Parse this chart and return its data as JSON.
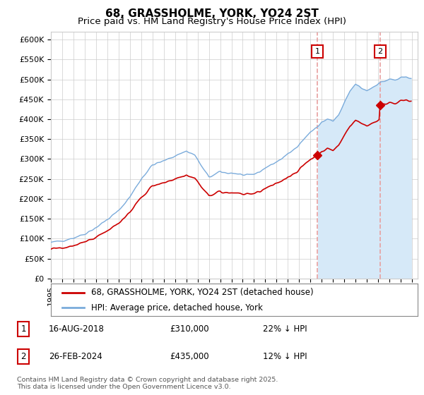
{
  "title": "68, GRASSHOLME, YORK, YO24 2ST",
  "subtitle": "Price paid vs. HM Land Registry's House Price Index (HPI)",
  "ylabel_ticks": [
    "£0",
    "£50K",
    "£100K",
    "£150K",
    "£200K",
    "£250K",
    "£300K",
    "£350K",
    "£400K",
    "£450K",
    "£500K",
    "£550K",
    "£600K"
  ],
  "ytick_values": [
    0,
    50000,
    100000,
    150000,
    200000,
    250000,
    300000,
    350000,
    400000,
    450000,
    500000,
    550000,
    600000
  ],
  "ylim": [
    0,
    620000
  ],
  "xlim_start": 1995.0,
  "xlim_end": 2027.5,
  "marker1_date": 2018.625,
  "marker1_price": 310000,
  "marker2_date": 2024.16,
  "marker2_price": 435000,
  "red_line_color": "#cc0000",
  "blue_line_color": "#7aabdb",
  "blue_fill_color": "#d6e9f8",
  "vline_color": "#e8a0a0",
  "annotation_border_color": "#cc0000",
  "background_color": "#ffffff",
  "grid_color": "#cccccc",
  "legend_label_red": "68, GRASSHOLME, YORK, YO24 2ST (detached house)",
  "legend_label_blue": "HPI: Average price, detached house, York",
  "table_row1": [
    "1",
    "16-AUG-2018",
    "£310,000",
    "22% ↓ HPI"
  ],
  "table_row2": [
    "2",
    "26-FEB-2024",
    "£435,000",
    "12% ↓ HPI"
  ],
  "footnote": "Contains HM Land Registry data © Crown copyright and database right 2025.\nThis data is licensed under the Open Government Licence v3.0.",
  "title_fontsize": 11,
  "subtitle_fontsize": 9.5,
  "tick_fontsize": 8,
  "legend_fontsize": 8.5
}
